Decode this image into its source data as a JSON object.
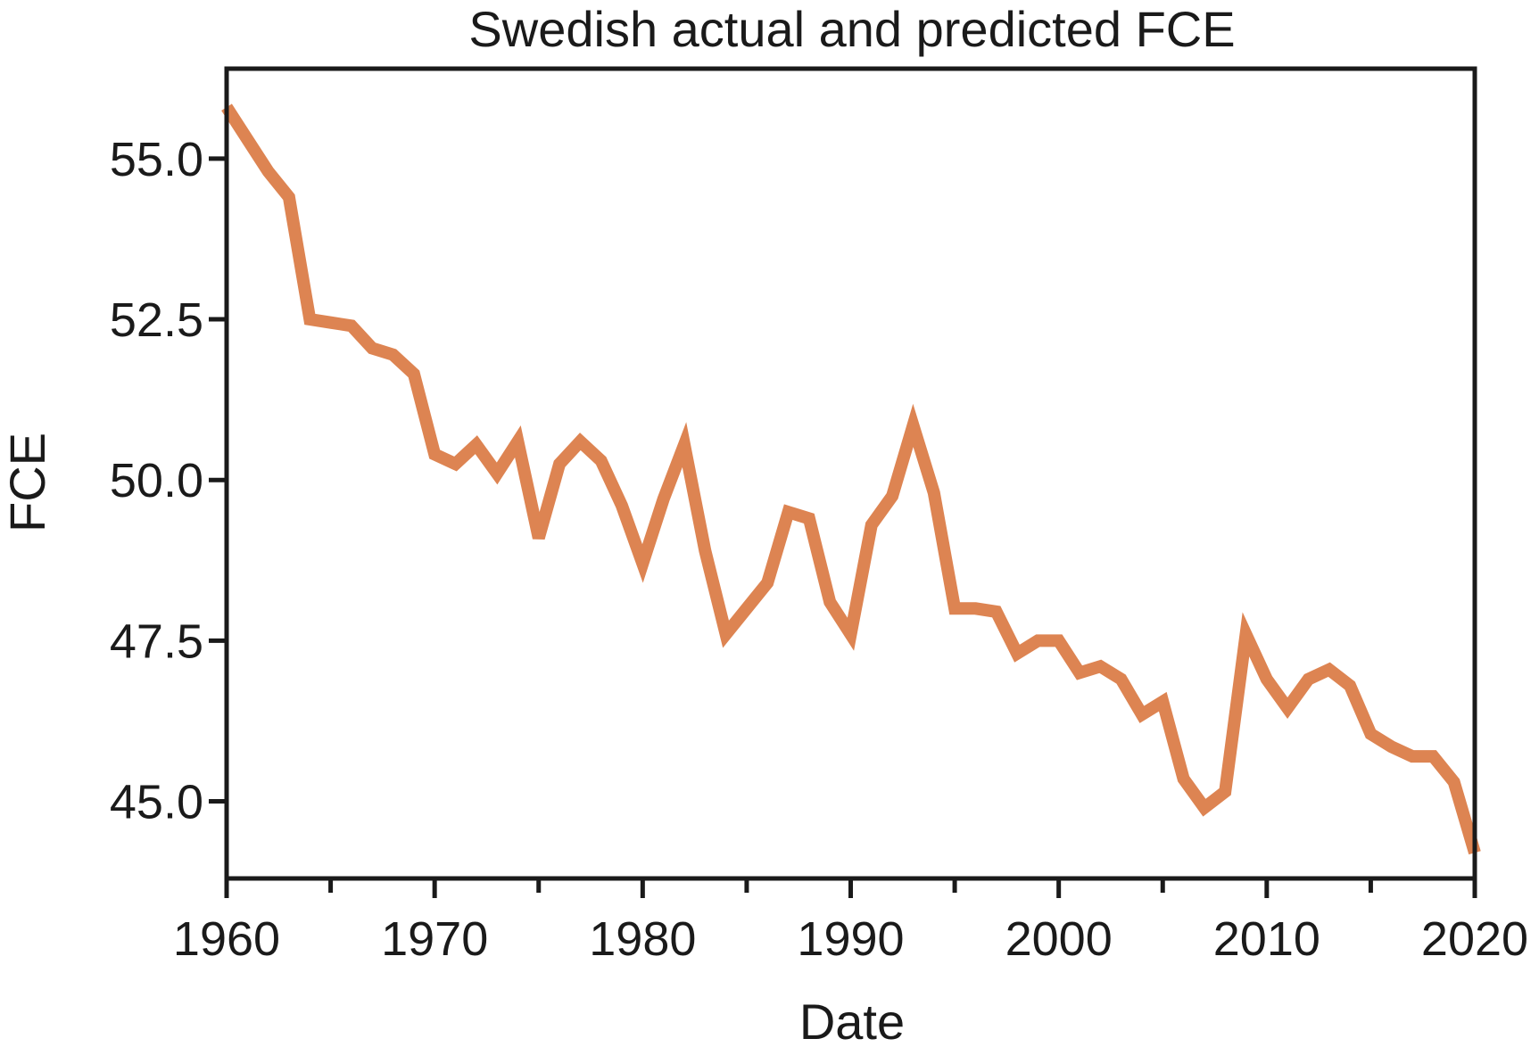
{
  "chart_data": {
    "type": "line",
    "title": "Swedish actual and predicted FCE",
    "xlabel": "Date",
    "ylabel": "FCE",
    "xlim": [
      1960,
      2020
    ],
    "ylim": [
      43.8,
      56.4
    ],
    "x_ticks": [
      1960,
      1970,
      1980,
      1990,
      2000,
      2010,
      2020
    ],
    "x_tick_labels": [
      "1960",
      "1970",
      "1980",
      "1990",
      "2000",
      "2010",
      "2020"
    ],
    "y_ticks": [
      45.0,
      47.5,
      50.0,
      52.5,
      55.0
    ],
    "y_tick_labels": [
      "45.0",
      "47.5",
      "50.0",
      "52.5",
      "55.0"
    ],
    "grid": false,
    "legend": "none",
    "series": [
      {
        "color": "#dd8452",
        "x": [
          1960,
          1961,
          1962,
          1963,
          1964,
          1965,
          1966,
          1967,
          1968,
          1969,
          1970,
          1971,
          1972,
          1973,
          1974,
          1975,
          1976,
          1977,
          1978,
          1979,
          1980,
          1981,
          1982,
          1983,
          1984,
          1985,
          1986,
          1987,
          1988,
          1989,
          1990,
          1991,
          1992,
          1993,
          1994,
          1995,
          1996,
          1997,
          1998,
          1999,
          2000,
          2001,
          2002,
          2003,
          2004,
          2005,
          2006,
          2007,
          2008,
          2009,
          2010,
          2011,
          2012,
          2013,
          2014,
          2015,
          2016,
          2017,
          2018,
          2019,
          2020
        ],
        "y": [
          55.8,
          55.3,
          54.8,
          54.4,
          52.5,
          52.45,
          52.4,
          52.05,
          51.95,
          51.65,
          50.4,
          50.25,
          50.55,
          50.1,
          50.6,
          49.1,
          50.25,
          50.6,
          50.3,
          49.6,
          48.7,
          49.7,
          50.55,
          48.9,
          47.6,
          48.0,
          48.4,
          49.5,
          49.4,
          48.1,
          47.6,
          49.3,
          49.75,
          50.85,
          49.8,
          48.0,
          48.0,
          47.95,
          47.3,
          47.5,
          47.5,
          47.0,
          47.1,
          46.9,
          46.35,
          46.55,
          45.35,
          44.9,
          45.15,
          47.6,
          46.9,
          46.45,
          46.9,
          47.05,
          46.8,
          46.05,
          45.85,
          45.7,
          45.7,
          45.3,
          44.2
        ]
      }
    ]
  }
}
